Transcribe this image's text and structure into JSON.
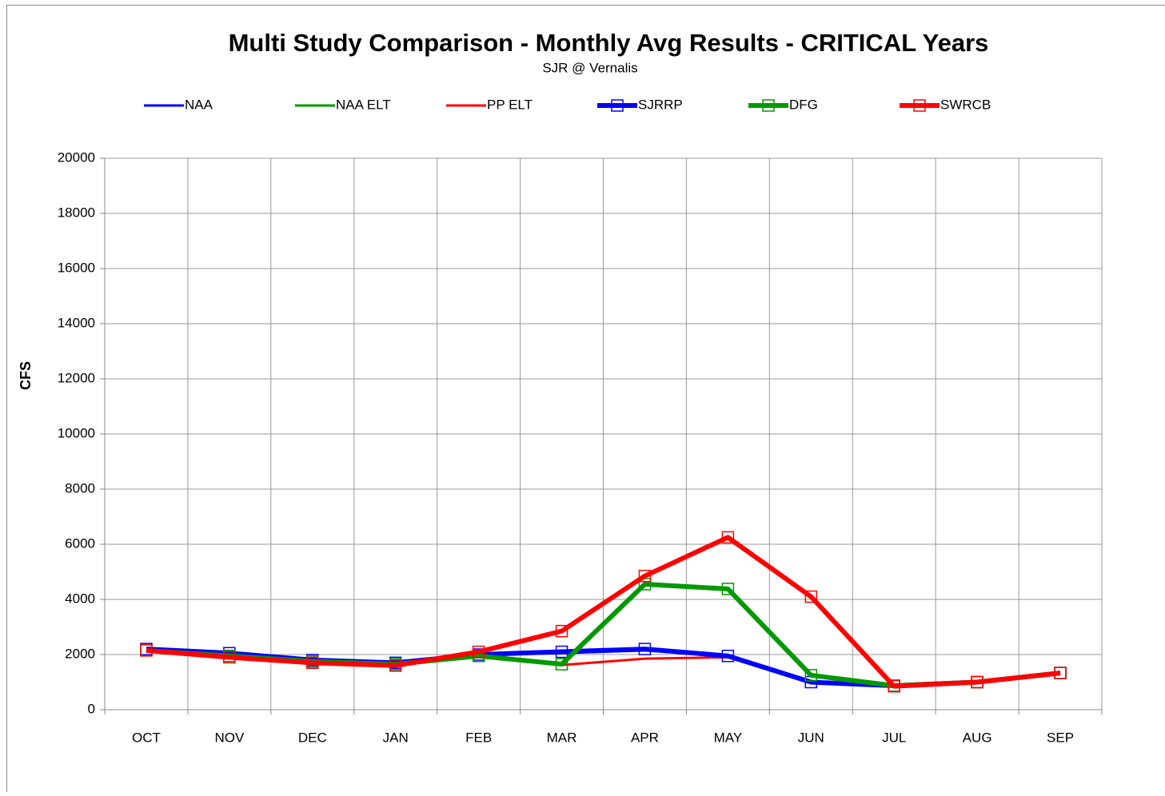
{
  "chart_data": {
    "type": "line",
    "title": "Multi Study Comparison - Monthly Avg Results -  CRITICAL Years",
    "subtitle": "SJR @ Vernalis",
    "y_label": "CFS",
    "categories": [
      "OCT",
      "NOV",
      "DEC",
      "JAN",
      "FEB",
      "MAR",
      "APR",
      "MAY",
      "JUN",
      "JUL",
      "AUG",
      "SEP"
    ],
    "series": [
      {
        "name": "NAA",
        "color": "#0000ff",
        "width": 3,
        "markers": false,
        "values": [
          2200,
          2050,
          1800,
          1700,
          2000,
          2050,
          2150,
          1950,
          1000,
          870,
          1000,
          1330
        ]
      },
      {
        "name": "NAA ELT",
        "color": "#009900",
        "width": 3,
        "markers": false,
        "values": [
          2150,
          1950,
          1750,
          1650,
          1950,
          1650,
          4550,
          4380,
          1250,
          870,
          1000,
          1330
        ]
      },
      {
        "name": "PP ELT",
        "color": "#ff0000",
        "width": 3,
        "markers": false,
        "values": [
          2150,
          1900,
          1700,
          1600,
          2000,
          1620,
          1850,
          1900,
          1000,
          870,
          1000,
          1330
        ]
      },
      {
        "name": "SJRRP",
        "color": "#0000ff",
        "width": 6,
        "markers": true,
        "values": [
          2200,
          2050,
          1800,
          1700,
          2000,
          2100,
          2200,
          1950,
          1000,
          870,
          1000,
          1330
        ]
      },
      {
        "name": "DFG",
        "color": "#009900",
        "width": 6,
        "markers": true,
        "values": [
          2150,
          1950,
          1750,
          1650,
          1950,
          1650,
          4550,
          4380,
          1250,
          870,
          1000,
          1330
        ]
      },
      {
        "name": "SWRCB",
        "color": "#ff0000",
        "width": 6,
        "markers": true,
        "values": [
          2150,
          1900,
          1700,
          1600,
          2100,
          2850,
          4850,
          6250,
          4100,
          850,
          1000,
          1330
        ]
      }
    ],
    "ylim": [
      0,
      20000
    ],
    "yticks": [
      0,
      2000,
      4000,
      6000,
      8000,
      10000,
      12000,
      14000,
      16000,
      18000,
      20000
    ],
    "grid": true,
    "legend": "top"
  }
}
